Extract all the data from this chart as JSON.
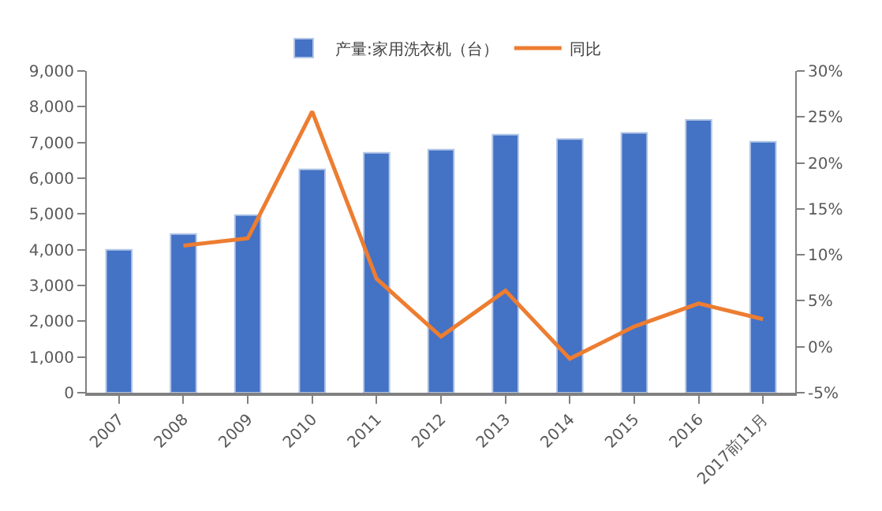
{
  "chart_data": {
    "type": "bar",
    "categories": [
      "2007",
      "2008",
      "2009",
      "2010",
      "2011",
      "2012",
      "2013",
      "2014",
      "2015",
      "2016",
      "2017前11月"
    ],
    "series": [
      {
        "name": "产量:家用洗衣机（台）",
        "color": "#4472c4",
        "values": [
          4000,
          4440,
          4970,
          6250,
          6710,
          6800,
          7220,
          7100,
          7270,
          7630,
          7020
        ]
      },
      {
        "name": "同比",
        "type": "line",
        "axis": "y2",
        "color": "#ed7d31",
        "values": [
          null,
          11.0,
          11.8,
          25.6,
          7.4,
          1.1,
          6.1,
          -1.3,
          2.2,
          4.7,
          3.0
        ]
      }
    ],
    "ylim": [
      0,
      9000
    ],
    "yticks": [
      0,
      {
        "value": 1000,
        "label": "1,000"
      },
      {
        "value": 2000,
        "label": "2,000"
      },
      {
        "value": 3000,
        "label": "3,000"
      },
      {
        "value": 4000,
        "label": "4,000"
      },
      {
        "value": 5000,
        "label": "5,000"
      },
      {
        "value": 6000,
        "label": "6,000"
      },
      {
        "value": 7000,
        "label": "7,000"
      },
      {
        "value": 8000,
        "label": "8,000"
      },
      {
        "value": 9000,
        "label": "9,000"
      }
    ],
    "y2lim": [
      -5,
      30
    ],
    "y2ticks": [
      {
        "value": -5,
        "label": "-5%"
      },
      {
        "value": 0,
        "label": "0%"
      },
      {
        "value": 5,
        "label": "5%"
      },
      {
        "value": 10,
        "label": "10%"
      },
      {
        "value": 15,
        "label": "15%"
      },
      {
        "value": 20,
        "label": "20%"
      },
      {
        "value": 25,
        "label": "25%"
      },
      {
        "value": 30,
        "label": "30%"
      }
    ],
    "legend": "top",
    "marker": "none",
    "line_style": "solid"
  }
}
